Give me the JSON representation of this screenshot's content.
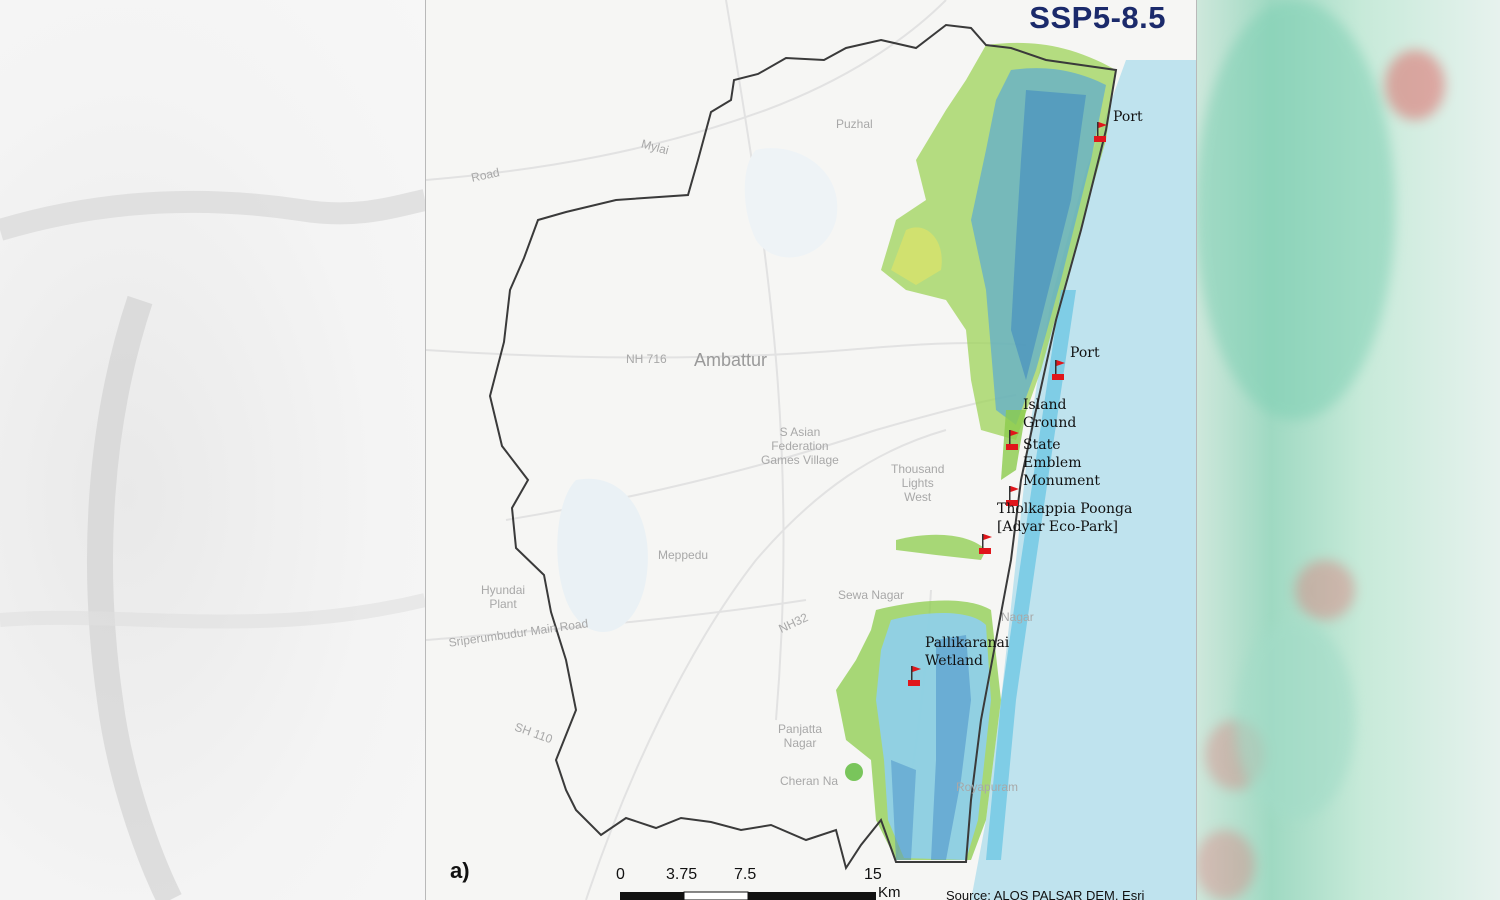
{
  "map": {
    "scenario_title": "SSP5-8.5",
    "panel_label": "a)",
    "base_labels": {
      "ambattur": "Ambattur",
      "nh": "NH 716",
      "asian_games": "S Asian\nFederation\nGames Village",
      "thousand_lights": "Thousand\nLights\nWest",
      "meppedu": "Meppedu",
      "sevanagar": "Sewa Nagar",
      "perungudi": "Nagar",
      "panjayath": "Panjatta\nNagar",
      "cheran": "Cheran Na",
      "puzhal": "Puzhal",
      "nh32": "NH32",
      "road": "Road",
      "sh110": "SH 110",
      "sriperumbudur": "Sriperumbudur Main Road",
      "mylai": "Mylai",
      "rayapuram": "Royapuram",
      "hyundai": "Hyundai\nPlant"
    },
    "landmarks": [
      {
        "name": "Port"
      },
      {
        "name": "Port"
      },
      {
        "name": "Island\nGround"
      },
      {
        "name": "State\nEmblem\nMonument"
      },
      {
        "name": "Tholkappia Poonga\n[Adyar Eco-Park]"
      },
      {
        "name": "Pallikaranai\nWetland"
      }
    ],
    "scale_bar": {
      "ticks": [
        "0",
        "3.75",
        "7.5",
        "15"
      ],
      "unit": "Km"
    },
    "source": "Source: ALOS PALSAR DEM, Esri",
    "colors": {
      "boundary": "#3a3a3a",
      "flood_deep": "#4a90c8",
      "flood_shallow": "#8fd0e8",
      "flood_green": "#6cc04a",
      "flood_yellow": "#d8e26a",
      "title": "#1b2a6b",
      "flag": "#e0161b"
    }
  }
}
